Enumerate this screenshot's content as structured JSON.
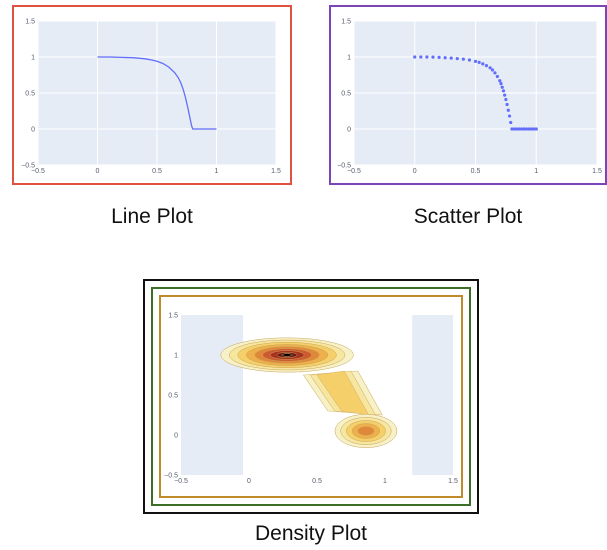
{
  "chart_data": [
    {
      "type": "line",
      "caption": "Line Plot",
      "xlim": [
        -0.5,
        1.5
      ],
      "ylim": [
        -0.5,
        1.5
      ],
      "xticks": [
        "−0.5",
        "0",
        "0.5",
        "1",
        "1.5"
      ],
      "yticks": [
        "−0.5",
        "0",
        "0.5",
        "1",
        "1.5"
      ],
      "grid": true,
      "color": "#636efa",
      "series": [
        {
          "x": [
            0,
            0.1,
            0.2,
            0.3,
            0.4,
            0.45,
            0.5,
            0.55,
            0.6,
            0.65,
            0.68,
            0.7,
            0.72,
            0.74,
            0.76,
            0.78,
            0.79,
            0.8,
            0.85,
            0.9,
            0.95,
            1.0
          ],
          "y": [
            1.0,
            1.0,
            0.995,
            0.99,
            0.975,
            0.96,
            0.94,
            0.91,
            0.86,
            0.78,
            0.71,
            0.64,
            0.55,
            0.43,
            0.29,
            0.13,
            0.05,
            0,
            0,
            0,
            0,
            0
          ]
        }
      ]
    },
    {
      "type": "scatter",
      "caption": "Scatter Plot",
      "xlim": [
        -0.5,
        1.5
      ],
      "ylim": [
        -0.5,
        1.5
      ],
      "xticks": [
        "−0.5",
        "0",
        "0.5",
        "1",
        "1.5"
      ],
      "yticks": [
        "−0.5",
        "0",
        "0.5",
        "1",
        "1.5"
      ],
      "grid": true,
      "color": "#636efa",
      "series": [
        {
          "x": [
            0,
            0.05,
            0.1,
            0.15,
            0.2,
            0.25,
            0.3,
            0.35,
            0.4,
            0.45,
            0.5,
            0.53,
            0.56,
            0.59,
            0.62,
            0.64,
            0.66,
            0.68,
            0.7,
            0.71,
            0.72,
            0.73,
            0.74,
            0.75,
            0.76,
            0.77,
            0.78,
            0.79,
            0.8,
            0.82,
            0.84,
            0.86,
            0.88,
            0.9,
            0.92,
            0.94,
            0.96,
            0.98,
            1.0
          ],
          "y": [
            1.0,
            1.0,
            1.0,
            0.998,
            0.995,
            0.99,
            0.985,
            0.978,
            0.97,
            0.958,
            0.94,
            0.925,
            0.905,
            0.88,
            0.85,
            0.82,
            0.78,
            0.73,
            0.67,
            0.63,
            0.58,
            0.53,
            0.47,
            0.41,
            0.34,
            0.26,
            0.18,
            0.09,
            0,
            0,
            0,
            0,
            0,
            0,
            0,
            0,
            0,
            0,
            0
          ]
        }
      ]
    },
    {
      "type": "heatmap",
      "subtype": "density-contour",
      "caption": "Density Plot",
      "xlim": [
        -0.5,
        1.5
      ],
      "ylim": [
        -0.5,
        1.5
      ],
      "xticks": [
        "−0.5",
        "0",
        "0.5",
        "1",
        "1.5"
      ],
      "yticks": [
        "−0.5",
        "0",
        "0.5",
        "1",
        "1.5"
      ],
      "grid": false,
      "colorscale": [
        "#f7f1c8",
        "#f7e6a0",
        "#f5d06a",
        "#eeb04c",
        "#e0883a",
        "#cc5a2e",
        "#a8321f",
        "#6e1a12",
        "#000000"
      ],
      "clusters": [
        {
          "center_x": 0.28,
          "center_y": 1.0,
          "spread_x": 0.25,
          "spread_y": 0.11,
          "peak": 1.0
        },
        {
          "center_x": 0.86,
          "center_y": 0.05,
          "spread_x": 0.12,
          "spread_y": 0.11,
          "peak": 0.45
        }
      ],
      "bridge": {
        "from": [
          0.6,
          0.75
        ],
        "to": [
          0.78,
          0.3
        ],
        "weight": 0.22
      }
    }
  ]
}
